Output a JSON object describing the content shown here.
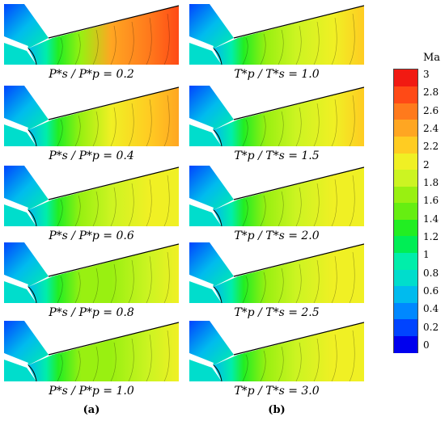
{
  "colorbar": {
    "title": "Ma",
    "ticks": [
      "3",
      "2.8",
      "2.6",
      "2.4",
      "2.2",
      "2",
      "1.8",
      "1.6",
      "1.4",
      "1.2",
      "1",
      "0.8",
      "0.6",
      "0.4",
      "0.2",
      "0"
    ],
    "colors": [
      "#0000ee",
      "#0044ff",
      "#0088ff",
      "#00bbee",
      "#00ddcc",
      "#00eeaa",
      "#00ee55",
      "#22ee22",
      "#66ee11",
      "#99f011",
      "#ccf422",
      "#f0f024",
      "#ffcc22",
      "#ffa622",
      "#ff7a1c",
      "#ff4a16",
      "#f11a12"
    ]
  },
  "columns": [
    {
      "label": "(a)",
      "captions": [
        "P*s / P*p = 0.2",
        "P*s / P*p = 0.4",
        "P*s / P*p = 0.6",
        "P*s / P*p = 0.8",
        "P*s / P*p = 1.0"
      ]
    },
    {
      "label": "(b)",
      "captions": [
        "T*p / T*s = 1.0",
        "T*p / T*s = 1.5",
        "T*p / T*s = 2.0",
        "T*p / T*s = 2.5",
        "T*p / T*s = 3.0"
      ]
    }
  ],
  "panels": [
    {
      "max_mach": 3.0
    },
    {
      "max_mach": 2.5
    },
    {
      "max_mach": 2.3
    },
    {
      "max_mach": 2.2
    },
    {
      "max_mach": 2.1
    },
    {
      "max_mach": 2.4
    },
    {
      "max_mach": 2.35
    },
    {
      "max_mach": 2.3
    },
    {
      "max_mach": 2.3
    },
    {
      "max_mach": 2.25
    }
  ]
}
